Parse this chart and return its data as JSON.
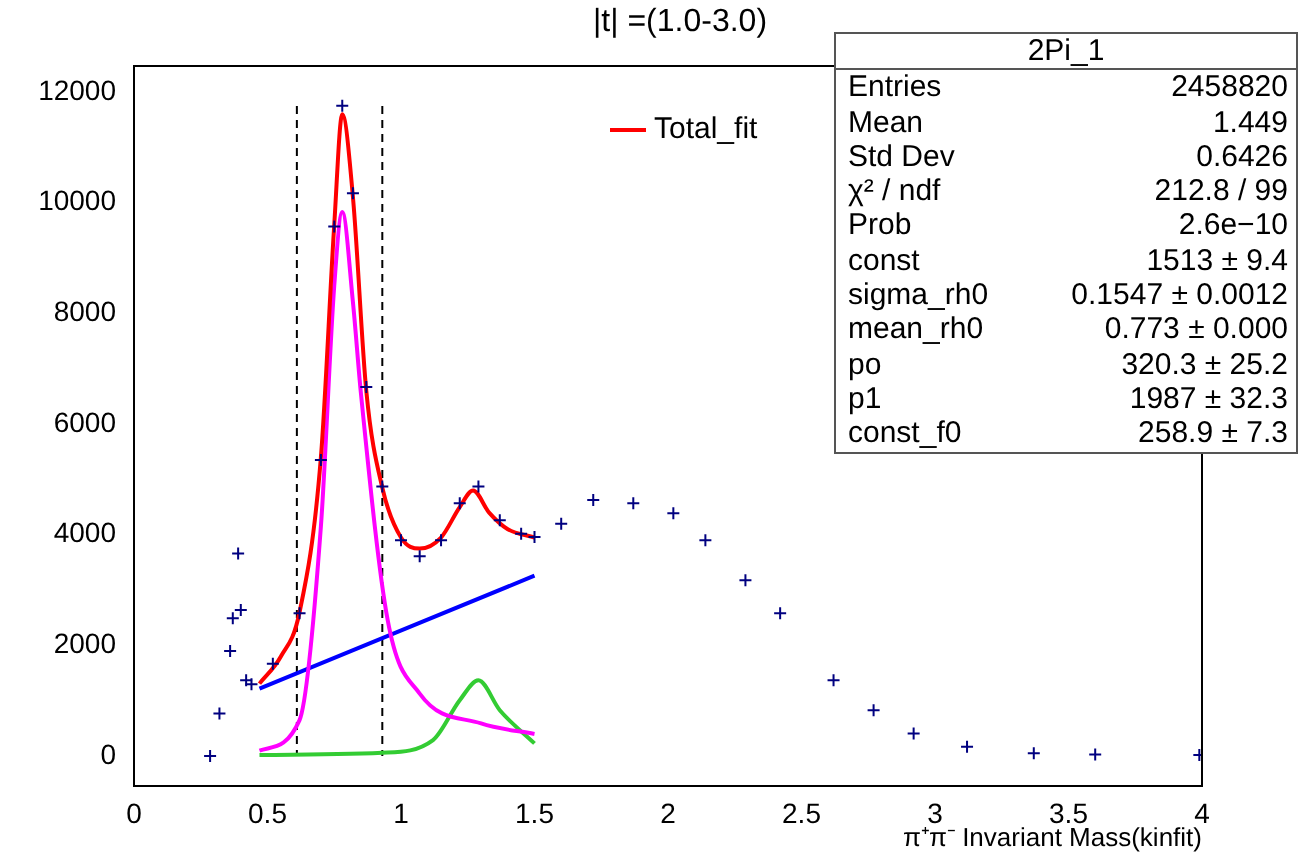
{
  "chart_data": {
    "type": "scatter",
    "title": "|t| =(1.0-3.0)",
    "xlabel": "π⁺π⁻ Invariant Mass(kinfit)",
    "xlim": [
      0,
      4
    ],
    "ylim": [
      -540,
      12470
    ],
    "xticks": [
      0,
      0.5,
      1,
      1.5,
      2,
      2.5,
      3,
      3.5,
      4
    ],
    "yticks": [
      0,
      2000,
      4000,
      6000,
      8000,
      10000,
      12000
    ],
    "grid": false,
    "legend": "top right",
    "ref_lines": [
      {
        "axis": "x",
        "value": 0.61,
        "line_style": "dashed",
        "color": "#000000"
      },
      {
        "axis": "x",
        "value": 0.93,
        "line_style": "dashed",
        "color": "#000000"
      }
    ],
    "annotations": [
      "2Pi_1",
      "Entries",
      "2458820",
      "Mean",
      "1.449",
      "Std Dev",
      "0.6426",
      "χ² / ndf",
      "212.8 / 99",
      "Prob",
      "2.6e−10",
      "const",
      "1513 ± 9.4",
      "sigma_rh0",
      "0.1547 ± 0.0012",
      "mean_rh0",
      "0.773 ± 0.000",
      "po",
      "320.3 ± 25.2",
      "p1",
      "1987 ± 32.3",
      "const_f0",
      "258.9 ± 7.3"
    ],
    "series": [
      {
        "marker": "cross",
        "color": "#000080",
        "x": [
          0.285,
          0.32,
          0.36,
          0.37,
          0.39,
          0.4,
          0.42,
          0.44,
          0.52,
          0.62,
          0.7,
          0.75,
          0.78,
          0.82,
          0.87,
          0.93,
          1.0,
          1.07,
          1.15,
          1.22,
          1.29,
          1.37,
          1.45,
          1.5,
          1.6,
          1.72,
          1.87,
          2.02,
          2.14,
          2.29,
          2.42,
          2.62,
          2.77,
          2.92,
          3.12,
          3.37,
          3.6,
          3.99
        ],
        "values": [
          0,
          770,
          1900,
          2490,
          3660,
          2640,
          1370,
          1300,
          1670,
          2580,
          5350,
          9570,
          11750,
          10170,
          6670,
          4870,
          3900,
          3610,
          3900,
          4570,
          4870,
          4260,
          4020,
          3960,
          4200,
          4630,
          4570,
          4390,
          3900,
          3180,
          2580,
          1370,
          830,
          410,
          170,
          50,
          30,
          20
        ]
      },
      {
        "type": "line",
        "name": "Total_fit",
        "color": "#ff0000",
        "x": [
          0.47,
          0.55,
          0.62,
          0.7,
          0.75,
          0.78,
          0.82,
          0.87,
          0.93,
          1.0,
          1.07,
          1.15,
          1.22,
          1.27,
          1.33,
          1.4,
          1.5
        ],
        "values": [
          1310,
          1800,
          2600,
          5400,
          9600,
          11600,
          10100,
          6600,
          4850,
          3950,
          3750,
          3950,
          4500,
          4800,
          4400,
          4100,
          3950
        ]
      },
      {
        "type": "line",
        "color": "#ff00ff",
        "x": [
          0.47,
          0.62,
          0.7,
          0.75,
          0.78,
          0.82,
          0.85,
          0.95,
          1.07,
          1.3,
          1.5
        ],
        "values": [
          100,
          650,
          4150,
          8500,
          9830,
          8200,
          6550,
          2460,
          1130,
          590,
          400
        ]
      },
      {
        "type": "line",
        "color": "#33cc33",
        "x": [
          0.47,
          0.93,
          1.12,
          1.22,
          1.29,
          1.37,
          1.5
        ],
        "values": [
          20,
          60,
          290,
          1010,
          1370,
          830,
          230
        ]
      },
      {
        "type": "line",
        "color": "#0000ff",
        "x": [
          0.47,
          1.5
        ],
        "values": [
          1220,
          3260
        ]
      }
    ]
  }
}
